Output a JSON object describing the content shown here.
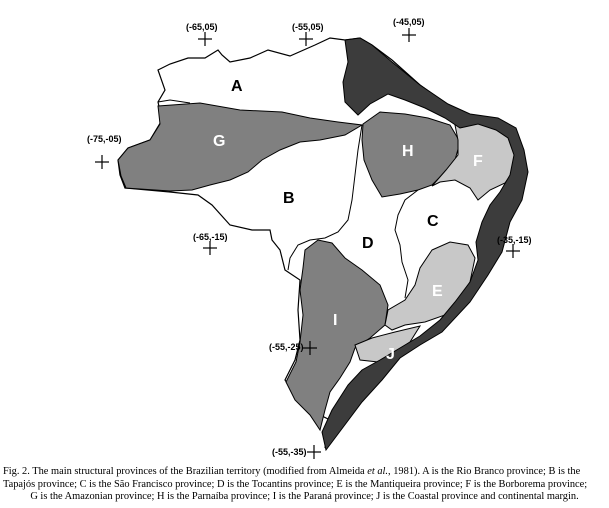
{
  "figure": {
    "coordinate_markers": [
      {
        "id": "m1",
        "label": "(-65,05)"
      },
      {
        "id": "m2",
        "label": "(-55,05)"
      },
      {
        "id": "m3",
        "label": "(-45,05)"
      },
      {
        "id": "m4",
        "label": "(-75,-05)"
      },
      {
        "id": "m5",
        "label": "(-65,-15)"
      },
      {
        "id": "m6",
        "label": "(-35,-15)"
      },
      {
        "id": "m7",
        "label": "(-55,-25)"
      },
      {
        "id": "m8",
        "label": "(-55,-35)"
      }
    ],
    "provinces": [
      {
        "letter": "A",
        "name": "Rio Branco",
        "fill": "#ffffff"
      },
      {
        "letter": "B",
        "name": "Tapajós",
        "fill": "#ffffff"
      },
      {
        "letter": "C",
        "name": "São Francisco",
        "fill": "#ffffff"
      },
      {
        "letter": "D",
        "name": "Tocantins",
        "fill": "#ffffff"
      },
      {
        "letter": "E",
        "name": "Mantiqueira",
        "fill": "#c8c8c8"
      },
      {
        "letter": "F",
        "name": "Borborema",
        "fill": "#c8c8c8"
      },
      {
        "letter": "G",
        "name": "Amazonian",
        "fill": "#808080"
      },
      {
        "letter": "H",
        "name": "Parnaíba",
        "fill": "#808080"
      },
      {
        "letter": "I",
        "name": "Paraná",
        "fill": "#808080"
      },
      {
        "letter": "J",
        "name": "Coastal",
        "fill": "#3c3c3c"
      }
    ]
  },
  "caption": {
    "line1": "Fig. 2. The main structural provinces of the Brazilian territory (modified from Almeida ",
    "line1_italic": "et al.",
    "line1_end": ", 1981). A is the Rio Branco province; B is the",
    "line2": "Tapajós province; C is the São Francisco province; D is the Tocantins province; E is the Mantiqueira province; F is the Borborema province;",
    "line3": "G is the Amazonian province; H is the Parnaíba province; I is the Paraná province; J is the Coastal province and continental margin."
  }
}
